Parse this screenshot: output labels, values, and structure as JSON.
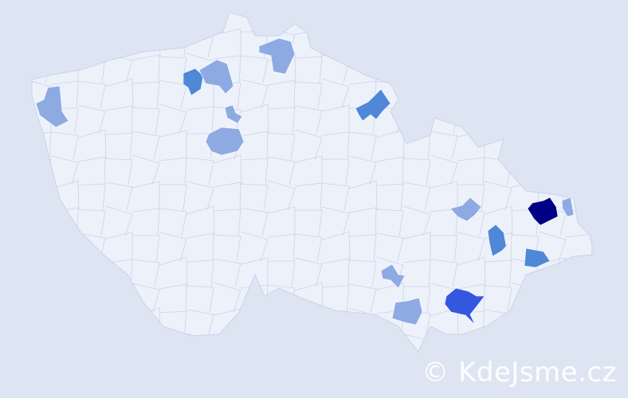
{
  "map": {
    "background_color": "#dde5f2",
    "land_color": "#edf1fa",
    "border_color": "#c9d3ea",
    "levels": {
      "low": "#8eaae2",
      "medium": "#4e88d6",
      "high": "#3457e0",
      "max": "#000087"
    },
    "highlighted_districts": [
      {
        "level": "low"
      },
      {
        "level": "medium"
      },
      {
        "level": "low"
      },
      {
        "level": "low"
      },
      {
        "level": "low"
      },
      {
        "level": "low"
      },
      {
        "level": "medium"
      },
      {
        "level": "max"
      },
      {
        "level": "low"
      },
      {
        "level": "low"
      },
      {
        "level": "medium"
      },
      {
        "level": "medium"
      },
      {
        "level": "low"
      },
      {
        "level": "low"
      },
      {
        "level": "high"
      }
    ]
  },
  "watermark": {
    "text": "© KdeJsme.cz"
  }
}
